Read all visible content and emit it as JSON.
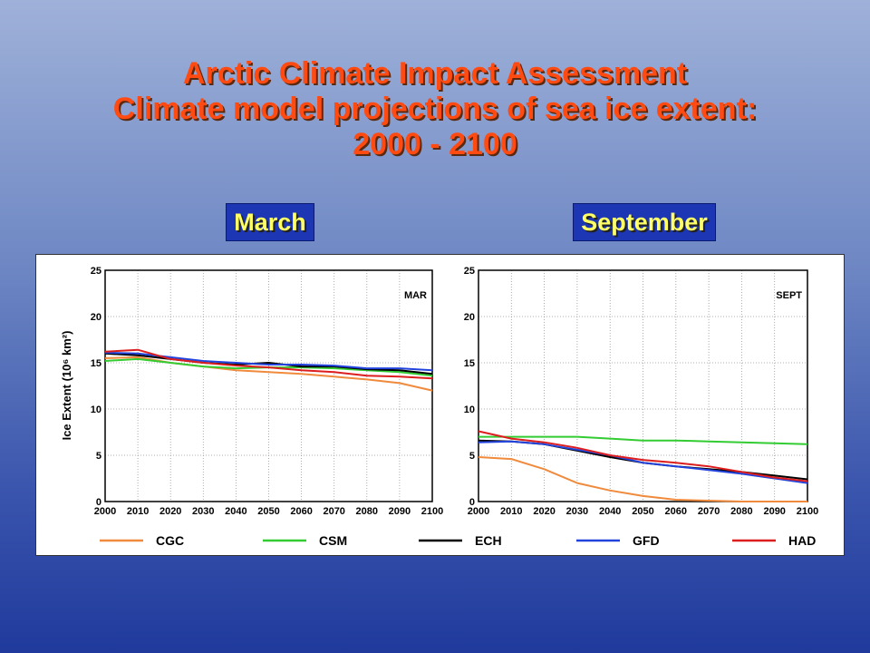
{
  "title_lines": [
    "Arctic Climate Impact Assessment",
    "Climate model projections of sea ice extent:",
    "2000 - 2100"
  ],
  "month_labels": {
    "march": "March",
    "september": "September"
  },
  "colors": {
    "CGC": "#f08a3c",
    "CSM": "#33cc33",
    "ECH": "#000000",
    "GFD": "#2244dd",
    "HAD": "#dd1e1e"
  },
  "chart_data": [
    {
      "type": "line",
      "panel_label": "MAR",
      "ylabel": "Ice Extent (10⁶ km²)",
      "xlim": [
        2000,
        2100
      ],
      "ylim": [
        0,
        25
      ],
      "x_ticks": [
        2000,
        2010,
        2020,
        2030,
        2040,
        2050,
        2060,
        2070,
        2080,
        2090,
        2100
      ],
      "y_ticks": [
        0,
        5,
        10,
        15,
        20,
        25
      ],
      "grid": true,
      "legend_position": "bottom",
      "x": [
        2000,
        2010,
        2020,
        2030,
        2040,
        2050,
        2060,
        2070,
        2080,
        2090,
        2100
      ],
      "series": [
        {
          "name": "CGC",
          "values": [
            15.5,
            15.6,
            15.0,
            14.6,
            14.2,
            14.0,
            13.8,
            13.5,
            13.2,
            12.8,
            12.0
          ]
        },
        {
          "name": "CSM",
          "values": [
            15.2,
            15.4,
            15.0,
            14.6,
            14.4,
            14.5,
            14.5,
            14.4,
            14.2,
            14.0,
            13.6
          ]
        },
        {
          "name": "ECH",
          "values": [
            16.0,
            15.8,
            15.4,
            15.0,
            14.8,
            15.0,
            14.6,
            14.6,
            14.3,
            14.2,
            13.8
          ]
        },
        {
          "name": "GFD",
          "values": [
            16.1,
            16.0,
            15.6,
            15.2,
            15.0,
            14.8,
            14.8,
            14.7,
            14.4,
            14.4,
            14.2
          ]
        },
        {
          "name": "HAD",
          "values": [
            16.2,
            16.4,
            15.4,
            15.0,
            14.7,
            14.5,
            14.2,
            14.0,
            13.6,
            13.5,
            13.3
          ]
        }
      ]
    },
    {
      "type": "line",
      "panel_label": "SEPT",
      "xlim": [
        2000,
        2100
      ],
      "ylim": [
        0,
        25
      ],
      "x_ticks": [
        2000,
        2010,
        2020,
        2030,
        2040,
        2050,
        2060,
        2070,
        2080,
        2090,
        2100
      ],
      "y_ticks": [
        0,
        5,
        10,
        15,
        20,
        25
      ],
      "grid": true,
      "legend_position": "bottom",
      "x": [
        2000,
        2010,
        2020,
        2030,
        2040,
        2050,
        2060,
        2070,
        2080,
        2090,
        2100
      ],
      "series": [
        {
          "name": "CGC",
          "values": [
            4.8,
            4.6,
            3.5,
            2.0,
            1.2,
            0.6,
            0.2,
            0.1,
            0.0,
            0.0,
            0.0
          ]
        },
        {
          "name": "CSM",
          "values": [
            7.0,
            7.0,
            7.0,
            7.0,
            6.8,
            6.6,
            6.6,
            6.5,
            6.4,
            6.3,
            6.2
          ]
        },
        {
          "name": "ECH",
          "values": [
            6.6,
            6.5,
            6.2,
            5.5,
            4.8,
            4.2,
            3.8,
            3.5,
            3.2,
            2.8,
            2.4
          ]
        },
        {
          "name": "GFD",
          "values": [
            6.4,
            6.5,
            6.2,
            5.6,
            5.0,
            4.2,
            3.8,
            3.4,
            3.0,
            2.5,
            2.0
          ]
        },
        {
          "name": "HAD",
          "values": [
            7.6,
            6.8,
            6.4,
            5.8,
            5.0,
            4.5,
            4.2,
            3.8,
            3.2,
            2.6,
            2.2
          ]
        }
      ]
    }
  ]
}
